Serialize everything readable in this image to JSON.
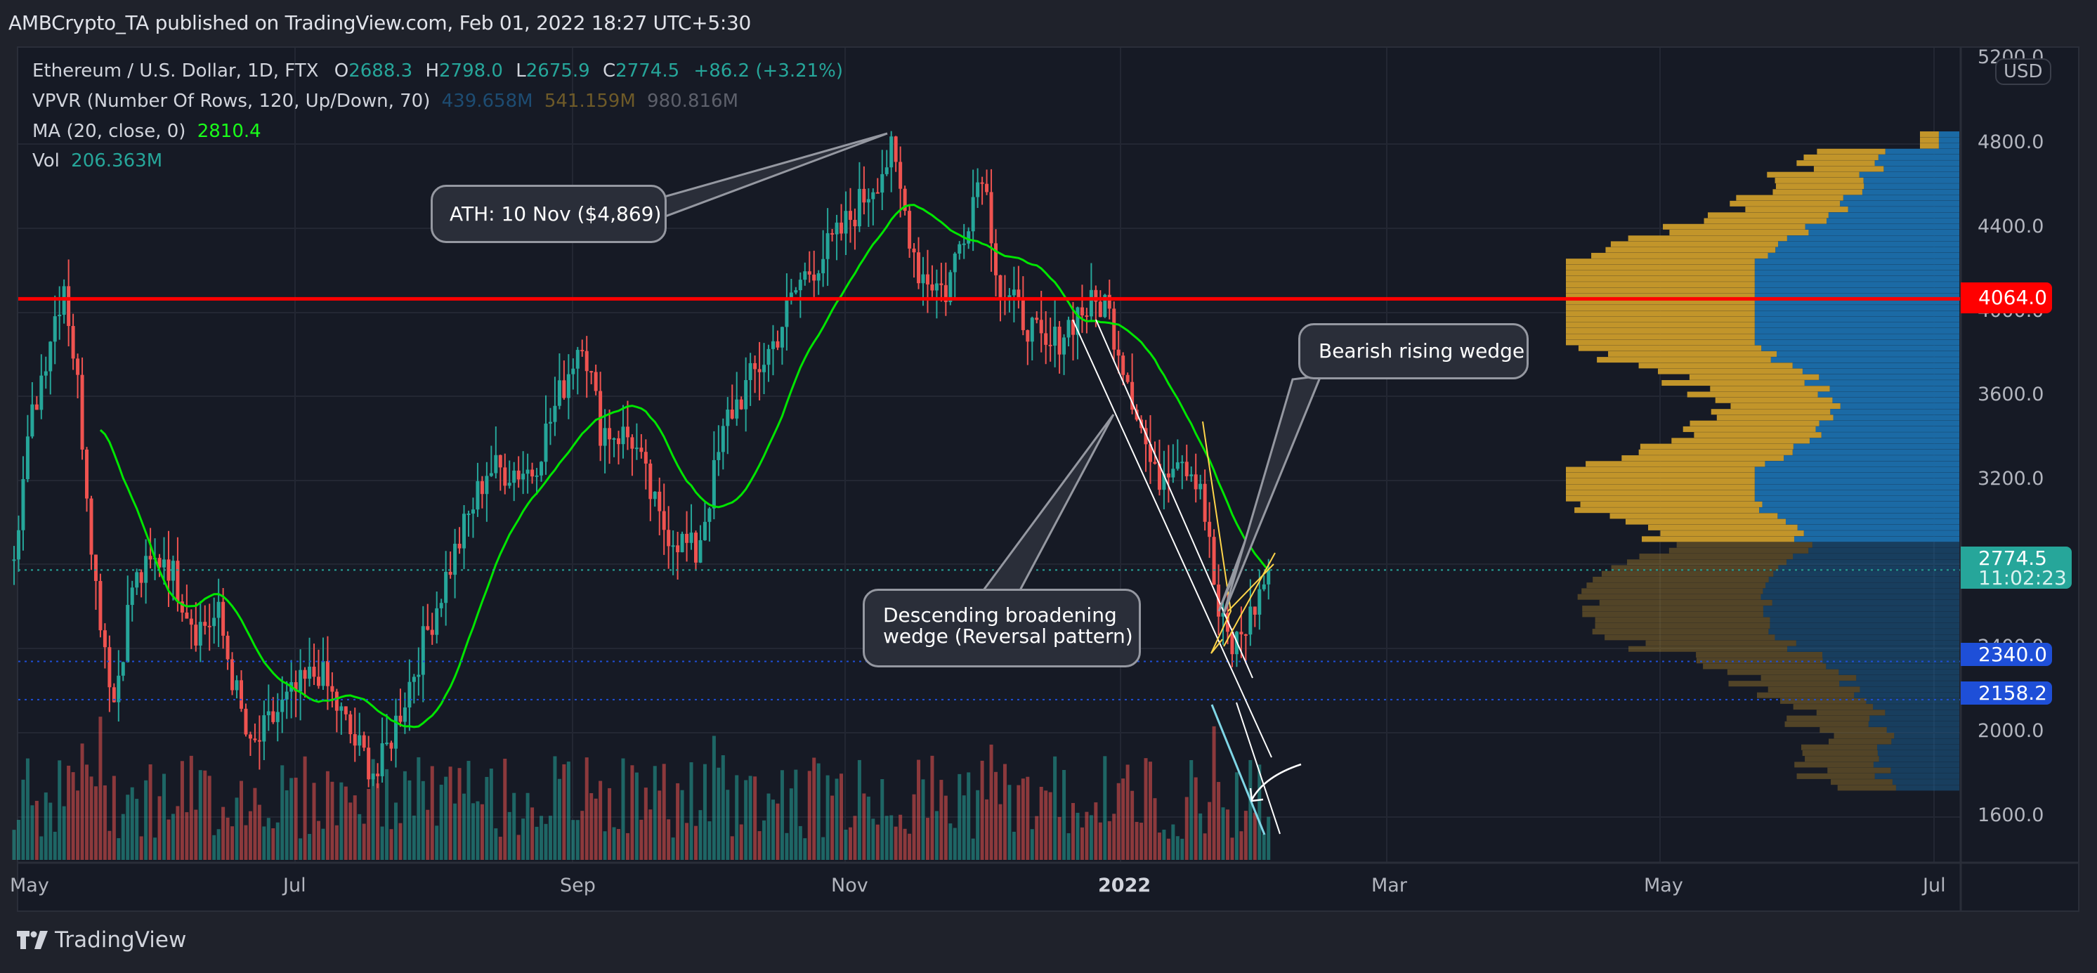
{
  "header": {
    "publish_line": "AMBCrypto_TA published on TradingView.com, Feb 01, 2022 18:27 UTC+5:30"
  },
  "legend": {
    "symbol": "Ethereum / U.S. Dollar, 1D, FTX",
    "open_label": "O",
    "open": "2688.3",
    "high_label": "H",
    "high": "2798.0",
    "low_label": "L",
    "low": "2675.9",
    "close_label": "C",
    "close": "2774.5",
    "change": "+86.2 (+3.21%)",
    "vpvr_label": "VPVR (Number Of Rows, 120, Up/Down, 70)",
    "vpvr_up": "439.658M",
    "vpvr_down": "541.159M",
    "vpvr_total": "980.816M",
    "ma_label": "MA (20, close, 0)",
    "ma_value": "2810.4",
    "vol_label": "Vol",
    "vol_value": "206.363M"
  },
  "price_axis": {
    "currency": "USD",
    "ticks": [
      "5200.0",
      "4800.0",
      "4400.0",
      "4000.0",
      "3600.0",
      "3200.0",
      "2400.0",
      "2000.0",
      "1600.0"
    ],
    "resistance_tag": "4064.0",
    "last_price_tag": "2774.5",
    "countdown": "11:02:23",
    "support_tag_1": "2340.0",
    "support_tag_2": "2158.2"
  },
  "time_axis": {
    "labels": [
      "May",
      "Jul",
      "Sep",
      "Nov",
      "2022",
      "Mar",
      "May",
      "Jul"
    ]
  },
  "annotations": {
    "ath": "ATH: 10 Nov ($4,869)",
    "rising_wedge": "Bearish rising wedge",
    "broadening_line1": "Descending broadening",
    "broadening_line2": "wedge (Reversal pattern)"
  },
  "footer": {
    "brand": "TradingView"
  },
  "colors": {
    "up": "#26a69a",
    "down": "#ef5350",
    "ma": "#00e600",
    "resistance": "#ff0000",
    "support": "#1e4fd8",
    "vpvr_up": "#c2952a",
    "vpvr_down": "#1b6aa5",
    "wedge_rising": "#ffd54a",
    "wedge_broad": "#ffffff",
    "vol_trend": "#7fd6e6"
  },
  "chart_data": {
    "type": "candlestick",
    "title": "Ethereum / U.S. Dollar, 1D, FTX",
    "xlabel": "",
    "ylabel": "USD",
    "ylim": [
      1450,
      5200
    ],
    "x_ticks": [
      "May",
      "Jul",
      "Sep",
      "Nov",
      "2022",
      "Mar",
      "May",
      "Jul"
    ],
    "y_ticks": [
      1600,
      2000,
      2400,
      3200,
      3600,
      4000,
      4400,
      4800,
      5200
    ],
    "price_path": [
      {
        "date": "2021-05-01",
        "close": 2900
      },
      {
        "date": "2021-05-05",
        "close": 3500
      },
      {
        "date": "2021-05-09",
        "close": 3900
      },
      {
        "date": "2021-05-12",
        "close": 4150
      },
      {
        "date": "2021-05-15",
        "close": 3650
      },
      {
        "date": "2021-05-19",
        "close": 2700
      },
      {
        "date": "2021-05-23",
        "close": 2150
      },
      {
        "date": "2021-05-27",
        "close": 2700
      },
      {
        "date": "2021-06-03",
        "close": 2850
      },
      {
        "date": "2021-06-10",
        "close": 2500
      },
      {
        "date": "2021-06-15",
        "close": 2550
      },
      {
        "date": "2021-06-22",
        "close": 1900
      },
      {
        "date": "2021-06-28",
        "close": 2100
      },
      {
        "date": "2021-07-07",
        "close": 2300
      },
      {
        "date": "2021-07-15",
        "close": 1950
      },
      {
        "date": "2021-07-20",
        "close": 1800
      },
      {
        "date": "2021-07-28",
        "close": 2300
      },
      {
        "date": "2021-08-05",
        "close": 2800
      },
      {
        "date": "2021-08-13",
        "close": 3250
      },
      {
        "date": "2021-08-23",
        "close": 3250
      },
      {
        "date": "2021-09-03",
        "close": 3900
      },
      {
        "date": "2021-09-07",
        "close": 3450
      },
      {
        "date": "2021-09-14",
        "close": 3400
      },
      {
        "date": "2021-09-20",
        "close": 3000
      },
      {
        "date": "2021-09-28",
        "close": 2850
      },
      {
        "date": "2021-10-05",
        "close": 3500
      },
      {
        "date": "2021-10-15",
        "close": 3850
      },
      {
        "date": "2021-10-21",
        "close": 4150
      },
      {
        "date": "2021-10-29",
        "close": 4350
      },
      {
        "date": "2021-11-10",
        "close": 4750
      },
      {
        "date": "2021-11-16",
        "close": 4200
      },
      {
        "date": "2021-11-22",
        "close": 4100
      },
      {
        "date": "2021-11-30",
        "close": 4700
      },
      {
        "date": "2021-12-04",
        "close": 4100
      },
      {
        "date": "2021-12-10",
        "close": 3950
      },
      {
        "date": "2021-12-14",
        "close": 3800
      },
      {
        "date": "2021-12-21",
        "close": 4000
      },
      {
        "date": "2021-12-27",
        "close": 4050
      },
      {
        "date": "2022-01-01",
        "close": 3700
      },
      {
        "date": "2022-01-07",
        "close": 3200
      },
      {
        "date": "2022-01-12",
        "close": 3350
      },
      {
        "date": "2022-01-17",
        "close": 3200
      },
      {
        "date": "2022-01-21",
        "close": 2550
      },
      {
        "date": "2022-01-24",
        "close": 2400
      },
      {
        "date": "2022-01-28",
        "close": 2550
      },
      {
        "date": "2022-02-01",
        "close": 2774.5
      }
    ],
    "series": [
      {
        "name": "MA (20, close, 0)",
        "last": 2810.4
      },
      {
        "name": "Vol",
        "last": "206.363M"
      }
    ],
    "horizontal_levels": [
      {
        "name": "Resistance",
        "value": 4064.0,
        "color": "#ff0000"
      },
      {
        "name": "Support 1",
        "value": 2340.0,
        "color": "#1e4fd8"
      },
      {
        "name": "Support 2",
        "value": 2158.2,
        "color": "#1e4fd8"
      },
      {
        "name": "Last price",
        "value": 2774.5,
        "color": "#26a69a"
      }
    ],
    "annotations": [
      {
        "text": "ATH: 10 Nov ($4,869)",
        "date": "2021-11-10",
        "value": 4869
      },
      {
        "text": "Bearish rising wedge",
        "date": "2022-01-28"
      },
      {
        "text": "Descending broadening wedge (Reversal pattern)",
        "date": "2022-01-01"
      }
    ],
    "vpvr": {
      "up_total": "439.658M",
      "down_total": "541.159M",
      "total": "980.816M",
      "rows": 120,
      "poc_near": 4064
    }
  }
}
